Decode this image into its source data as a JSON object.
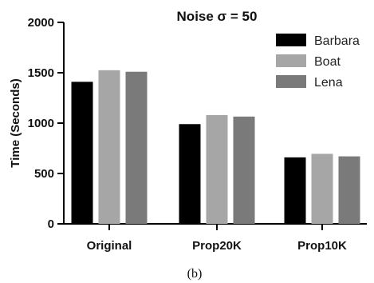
{
  "chart_data": {
    "type": "bar",
    "title": "Noise σ = 50",
    "xlabel": "",
    "ylabel": "Time (Seconds)",
    "ylim": [
      0,
      2000
    ],
    "yticks": [
      0,
      500,
      1000,
      1500,
      2000
    ],
    "categories": [
      "Original",
      "Prop20K",
      "Prop10K"
    ],
    "series": [
      {
        "name": "Barbara",
        "color": "#000000",
        "values": [
          1410,
          990,
          660
        ]
      },
      {
        "name": "Boat",
        "color": "#a6a6a6",
        "values": [
          1525,
          1080,
          695
        ]
      },
      {
        "name": "Lena",
        "color": "#7a7a7a",
        "values": [
          1510,
          1065,
          670
        ]
      }
    ],
    "legend_position": "top-right",
    "grid": false
  },
  "caption": "(b)"
}
